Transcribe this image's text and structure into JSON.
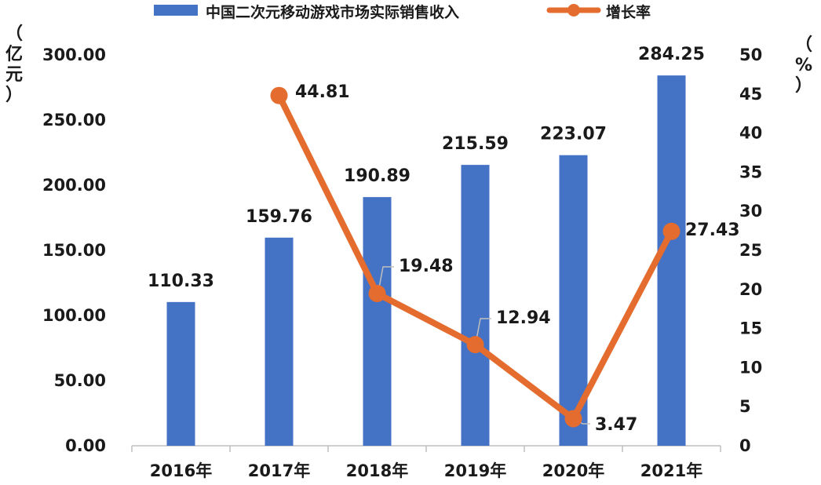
{
  "chart_data": {
    "type": "bar+line",
    "categories": [
      "2016年",
      "2017年",
      "2018年",
      "2019年",
      "2020年",
      "2021年"
    ],
    "series": [
      {
        "name": "中国二次元移动游戏市场实际销售收入",
        "type": "bar",
        "axis": "left",
        "color": "#4472C4",
        "values": [
          110.33,
          159.76,
          190.89,
          215.59,
          223.07,
          284.25
        ],
        "labels": [
          "110.33",
          "159.76",
          "190.89",
          "215.59",
          "223.07",
          "284.25"
        ]
      },
      {
        "name": "增长率",
        "type": "line",
        "axis": "right",
        "color": "#E46C2E",
        "values": [
          null,
          44.81,
          19.48,
          12.94,
          3.47,
          27.43
        ],
        "labels": [
          "",
          "44.81",
          "19.48",
          "12.94",
          "3.47",
          "27.43"
        ]
      }
    ],
    "y_left": {
      "label_chars": [
        "（",
        "亿",
        "元",
        "）"
      ],
      "ylim": [
        0,
        300
      ],
      "ticks": [
        "0.00",
        "50.00",
        "100.00",
        "150.00",
        "200.00",
        "250.00",
        "300.00"
      ]
    },
    "y_right": {
      "label_chars": [
        "（",
        "%",
        "）"
      ],
      "ylim": [
        0,
        50
      ],
      "ticks": [
        "0",
        "5",
        "10",
        "15",
        "20",
        "25",
        "30",
        "35",
        "40",
        "45",
        "50"
      ]
    },
    "legend_position": "top",
    "grid": false
  }
}
